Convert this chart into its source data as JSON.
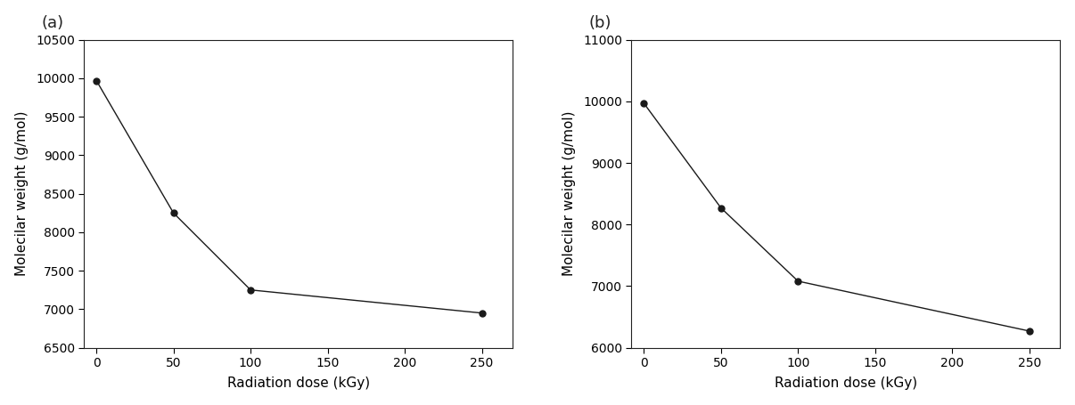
{
  "panel_a": {
    "label": "(a)",
    "x": [
      0,
      50,
      100,
      250
    ],
    "y": [
      9970,
      8250,
      7250,
      6950
    ],
    "xlabel": "Radiation dose (kGy)",
    "ylabel": "Molecilar weight (g/mol)",
    "xlim": [
      -8,
      270
    ],
    "ylim": [
      6500,
      10500
    ],
    "yticks": [
      6500,
      7000,
      7500,
      8000,
      8500,
      9000,
      9500,
      10000,
      10500
    ],
    "xticks": [
      0,
      50,
      100,
      150,
      200,
      250
    ]
  },
  "panel_b": {
    "label": "(b)",
    "x": [
      0,
      50,
      100,
      250
    ],
    "y": [
      9970,
      8270,
      7080,
      6270
    ],
    "xlabel": "Radiation dose (kGy)",
    "ylabel": "Molecilar weight (g/mol)",
    "xlim": [
      -8,
      270
    ],
    "ylim": [
      6000,
      11000
    ],
    "yticks": [
      6000,
      7000,
      8000,
      9000,
      10000,
      11000
    ],
    "xticks": [
      0,
      50,
      100,
      150,
      200,
      250
    ]
  },
  "line_color": "#1a1a1a",
  "marker_color": "#1a1a1a",
  "marker_size": 5,
  "linewidth": 1.0,
  "font_size": 10,
  "label_font_size": 11,
  "panel_label_font_size": 13,
  "background_color": "#ffffff"
}
